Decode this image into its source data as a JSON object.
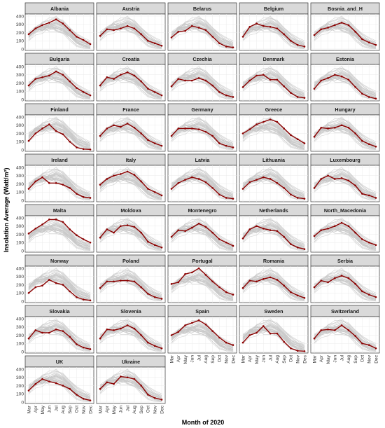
{
  "chart_data": {
    "type": "line",
    "layout": "small-multiples facet grid, 5 columns",
    "xlabel": "Month of 2020",
    "ylabel": "Insolation Average (Watt/m²)",
    "x": [
      "Mar",
      "Apr",
      "May",
      "Jun",
      "Jul",
      "Aug",
      "Sep",
      "Oct",
      "Nov",
      "Dec"
    ],
    "ylim": [
      0,
      400
    ],
    "yticks": [
      0,
      100,
      200,
      300,
      400
    ],
    "grid": true,
    "highlight_color": "#8b0000",
    "background_series_color": "#c8c8c8",
    "strip_color": "#d9d9d9",
    "panels": [
      {
        "name": "Albania",
        "values": [
          180,
          250,
          290,
          320,
          360,
          310,
          230,
          150,
          110,
          60
        ]
      },
      {
        "name": "Austria",
        "values": [
          160,
          240,
          230,
          250,
          280,
          250,
          180,
          100,
          70,
          40
        ]
      },
      {
        "name": "Belarus",
        "values": [
          140,
          210,
          220,
          280,
          260,
          230,
          150,
          70,
          30,
          20
        ]
      },
      {
        "name": "Belgium",
        "values": [
          150,
          270,
          310,
          280,
          270,
          250,
          180,
          100,
          50,
          30
        ]
      },
      {
        "name": "Bosnia_and_H",
        "values": [
          170,
          240,
          260,
          290,
          320,
          290,
          210,
          120,
          80,
          50
        ]
      },
      {
        "name": "Bulgaria",
        "values": [
          170,
          250,
          270,
          290,
          340,
          300,
          220,
          140,
          90,
          50
        ]
      },
      {
        "name": "Croatia",
        "values": [
          170,
          270,
          250,
          300,
          330,
          290,
          220,
          130,
          90,
          50
        ]
      },
      {
        "name": "Czechia",
        "values": [
          160,
          250,
          230,
          230,
          260,
          230,
          170,
          90,
          50,
          30
        ]
      },
      {
        "name": "Denmark",
        "values": [
          150,
          230,
          290,
          300,
          240,
          240,
          160,
          80,
          30,
          20
        ]
      },
      {
        "name": "Estonia",
        "values": [
          130,
          230,
          260,
          300,
          280,
          240,
          150,
          70,
          30,
          10
        ]
      },
      {
        "name": "Finland",
        "values": [
          110,
          200,
          260,
          310,
          230,
          190,
          100,
          30,
          10,
          5
        ]
      },
      {
        "name": "France",
        "values": [
          170,
          260,
          300,
          280,
          320,
          270,
          200,
          120,
          80,
          50
        ]
      },
      {
        "name": "Germany",
        "values": [
          170,
          260,
          260,
          260,
          250,
          220,
          170,
          80,
          50,
          30
        ]
      },
      {
        "name": "Greece",
        "values": [
          200,
          250,
          310,
          340,
          370,
          340,
          260,
          180,
          130,
          80
        ]
      },
      {
        "name": "Hungary",
        "values": [
          160,
          270,
          260,
          270,
          300,
          270,
          200,
          110,
          70,
          40
        ]
      },
      {
        "name": "Ireland",
        "values": [
          140,
          230,
          280,
          210,
          210,
          190,
          150,
          80,
          40,
          30
        ]
      },
      {
        "name": "Italy",
        "values": [
          190,
          260,
          300,
          320,
          350,
          310,
          230,
          140,
          100,
          60
        ]
      },
      {
        "name": "Latvia",
        "values": [
          140,
          210,
          250,
          280,
          260,
          220,
          150,
          70,
          30,
          20
        ]
      },
      {
        "name": "Lithuania",
        "values": [
          140,
          220,
          250,
          280,
          260,
          210,
          150,
          70,
          30,
          20
        ]
      },
      {
        "name": "Luxembourg",
        "values": [
          150,
          260,
          300,
          260,
          270,
          240,
          180,
          80,
          60,
          30
        ]
      },
      {
        "name": "Malta",
        "values": [
          210,
          270,
          320,
          380,
          380,
          350,
          260,
          190,
          140,
          100
        ]
      },
      {
        "name": "Moldova",
        "values": [
          160,
          260,
          220,
          300,
          310,
          290,
          220,
          110,
          70,
          40
        ]
      },
      {
        "name": "Montenegro",
        "values": [
          170,
          250,
          240,
          280,
          330,
          290,
          220,
          140,
          100,
          60
        ]
      },
      {
        "name": "Netherlands",
        "values": [
          150,
          260,
          300,
          270,
          250,
          240,
          170,
          80,
          40,
          20
        ]
      },
      {
        "name": "North_Macedonia",
        "values": [
          180,
          250,
          270,
          300,
          340,
          300,
          220,
          140,
          100,
          70
        ]
      },
      {
        "name": "Norway",
        "values": [
          100,
          170,
          190,
          260,
          220,
          200,
          120,
          50,
          20,
          10
        ]
      },
      {
        "name": "Poland",
        "values": [
          160,
          240,
          240,
          250,
          250,
          240,
          170,
          90,
          50,
          30
        ]
      },
      {
        "name": "Portugal",
        "values": [
          210,
          230,
          330,
          350,
          400,
          320,
          240,
          170,
          110,
          80
        ]
      },
      {
        "name": "Romania",
        "values": [
          160,
          250,
          240,
          270,
          290,
          260,
          190,
          110,
          70,
          40
        ]
      },
      {
        "name": "Serbia",
        "values": [
          170,
          250,
          230,
          280,
          310,
          280,
          210,
          120,
          80,
          50
        ]
      },
      {
        "name": "Slovakia",
        "values": [
          160,
          260,
          230,
          230,
          270,
          250,
          180,
          90,
          50,
          30
        ]
      },
      {
        "name": "Slovenia",
        "values": [
          160,
          270,
          260,
          280,
          320,
          280,
          200,
          110,
          70,
          40
        ]
      },
      {
        "name": "Spain",
        "values": [
          200,
          240,
          320,
          350,
          380,
          330,
          250,
          170,
          110,
          80
        ]
      },
      {
        "name": "Sweden",
        "values": [
          110,
          200,
          230,
          310,
          220,
          220,
          120,
          40,
          10,
          5
        ]
      },
      {
        "name": "Switzerland",
        "values": [
          160,
          260,
          270,
          260,
          320,
          260,
          190,
          100,
          80,
          40
        ]
      },
      {
        "name": "UK",
        "values": [
          140,
          220,
          280,
          250,
          230,
          200,
          160,
          90,
          40,
          20
        ]
      },
      {
        "name": "Ukraine",
        "values": [
          160,
          240,
          220,
          310,
          300,
          280,
          200,
          90,
          50,
          30
        ]
      }
    ]
  }
}
